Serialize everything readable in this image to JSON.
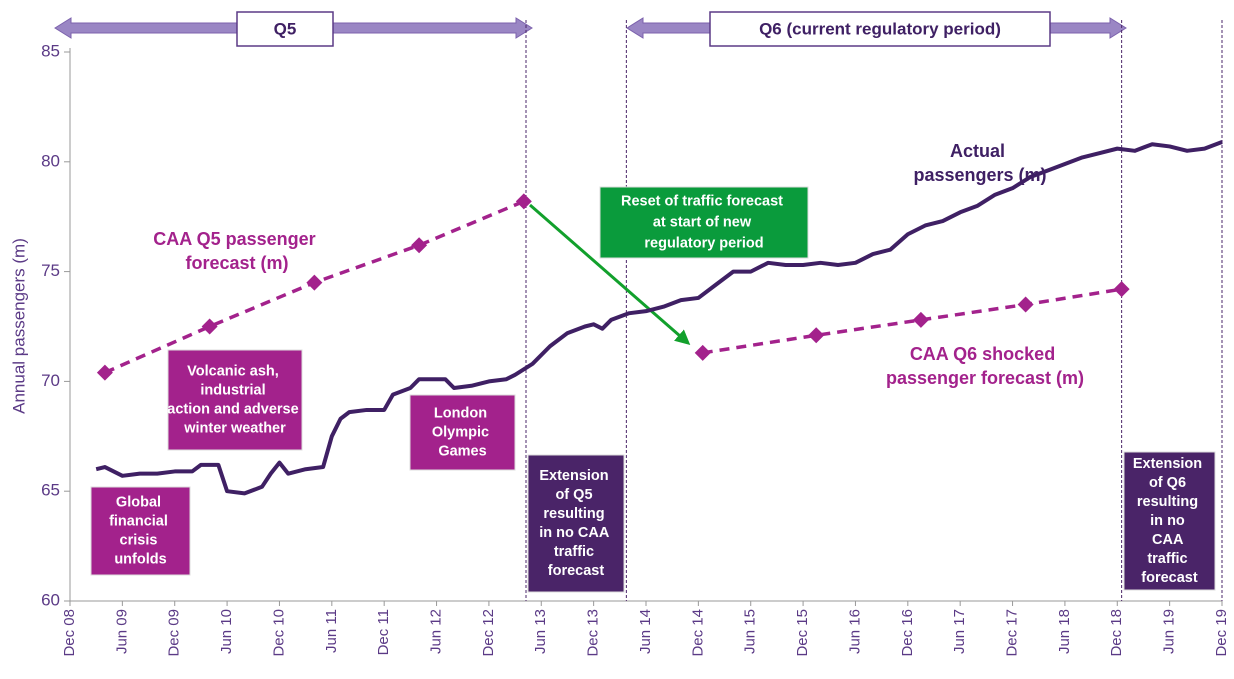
{
  "chart_data": {
    "type": "line",
    "ylabel": "Annual passengers (m)",
    "xlim": [
      0,
      132
    ],
    "ylim": [
      60,
      85
    ],
    "yticks": [
      60,
      65,
      70,
      75,
      80,
      85
    ],
    "xticks": [
      {
        "value": 0,
        "label": "Dec 08"
      },
      {
        "value": 6,
        "label": "Jun 09"
      },
      {
        "value": 12,
        "label": "Dec 09"
      },
      {
        "value": 18,
        "label": "Jun 10"
      },
      {
        "value": 24,
        "label": "Dec 10"
      },
      {
        "value": 30,
        "label": "Jun 11"
      },
      {
        "value": 36,
        "label": "Dec 11"
      },
      {
        "value": 42,
        "label": "Jun 12"
      },
      {
        "value": 48,
        "label": "Dec 12"
      },
      {
        "value": 54,
        "label": "Jun 13"
      },
      {
        "value": 60,
        "label": "Dec 13"
      },
      {
        "value": 66,
        "label": "Jun 14"
      },
      {
        "value": 72,
        "label": "Dec 14"
      },
      {
        "value": 78,
        "label": "Jun 15"
      },
      {
        "value": 84,
        "label": "Dec 15"
      },
      {
        "value": 90,
        "label": "Jun 16"
      },
      {
        "value": 96,
        "label": "Dec 16"
      },
      {
        "value": 102,
        "label": "Jun 17"
      },
      {
        "value": 108,
        "label": "Dec 17"
      },
      {
        "value": 114,
        "label": "Jun 18"
      },
      {
        "value": 120,
        "label": "Dec 18"
      },
      {
        "value": 126,
        "label": "Jun 19"
      },
      {
        "value": 132,
        "label": "Dec 19"
      }
    ],
    "periods": [
      "Q5",
      "Q6 (current regulatory period)"
    ],
    "dividers": [
      52.25,
      63.75,
      120.5,
      132
    ],
    "series": [
      {
        "name": "Actual passengers (m)",
        "color": "#3f2064",
        "dashed": false,
        "markers": false,
        "x": [
          3,
          4,
          6,
          8,
          10,
          12,
          14,
          15,
          17,
          18,
          20,
          22,
          23,
          24,
          25,
          27,
          29,
          30,
          31,
          32,
          34,
          36,
          37,
          39,
          40,
          43,
          44,
          46,
          48,
          50,
          51,
          53,
          55,
          57,
          59,
          60,
          61,
          62,
          64,
          66,
          68,
          70,
          72,
          74,
          76,
          78,
          80,
          82,
          84,
          86,
          88,
          90,
          92,
          94,
          96,
          98,
          100,
          102,
          104,
          106,
          108,
          110,
          112,
          114,
          116,
          118,
          120,
          122,
          124,
          126,
          128,
          130,
          132
        ],
        "values": [
          66.0,
          66.1,
          65.7,
          65.8,
          65.8,
          65.9,
          65.9,
          66.2,
          66.2,
          65.0,
          64.9,
          65.2,
          65.8,
          66.3,
          65.8,
          66.0,
          66.1,
          67.5,
          68.3,
          68.6,
          68.7,
          68.7,
          69.4,
          69.7,
          70.1,
          70.1,
          69.7,
          69.8,
          70.0,
          70.1,
          70.3,
          70.8,
          71.6,
          72.2,
          72.5,
          72.6,
          72.4,
          72.8,
          73.1,
          73.2,
          73.4,
          73.7,
          73.8,
          74.4,
          75.0,
          75.0,
          75.4,
          75.3,
          75.3,
          75.4,
          75.3,
          75.4,
          75.8,
          76.0,
          76.7,
          77.1,
          77.3,
          77.7,
          78.0,
          78.5,
          78.8,
          79.3,
          79.6,
          79.9,
          80.2,
          80.4,
          80.6,
          80.5,
          80.8,
          80.7,
          80.5,
          80.6,
          80.9
        ]
      },
      {
        "name": "CAA Q5 passenger forecast (m)",
        "color": "#a3228c",
        "dashed": true,
        "markers": true,
        "x": [
          4,
          16,
          28,
          40,
          52
        ],
        "values": [
          70.4,
          72.5,
          74.5,
          76.2,
          78.2
        ]
      },
      {
        "name": "CAA Q6 shocked passenger forecast (m)",
        "color": "#a3228c",
        "dashed": true,
        "markers": true,
        "x": [
          72.5,
          85.5,
          97.5,
          109.5,
          120.5
        ],
        "values": [
          71.3,
          72.1,
          72.8,
          73.5,
          74.2
        ]
      }
    ],
    "annotations": [
      {
        "text": "Global financial crisis unfolds",
        "color": "#a3228c"
      },
      {
        "text": "Volcanic ash, industrial action and adverse winter weather",
        "color": "#a3228c"
      },
      {
        "text": "London Olympic Games",
        "color": "#a3228c"
      },
      {
        "text": "Extension of Q5 resulting in no CAA traffic forecast",
        "color": "#4a2468"
      },
      {
        "text": "Extension of Q6 resulting in no CAA traffic forecast",
        "color": "#4a2468"
      },
      {
        "text": "Reset of traffic forecast at start of new regulatory period",
        "color": "#0a9b3c"
      }
    ]
  }
}
